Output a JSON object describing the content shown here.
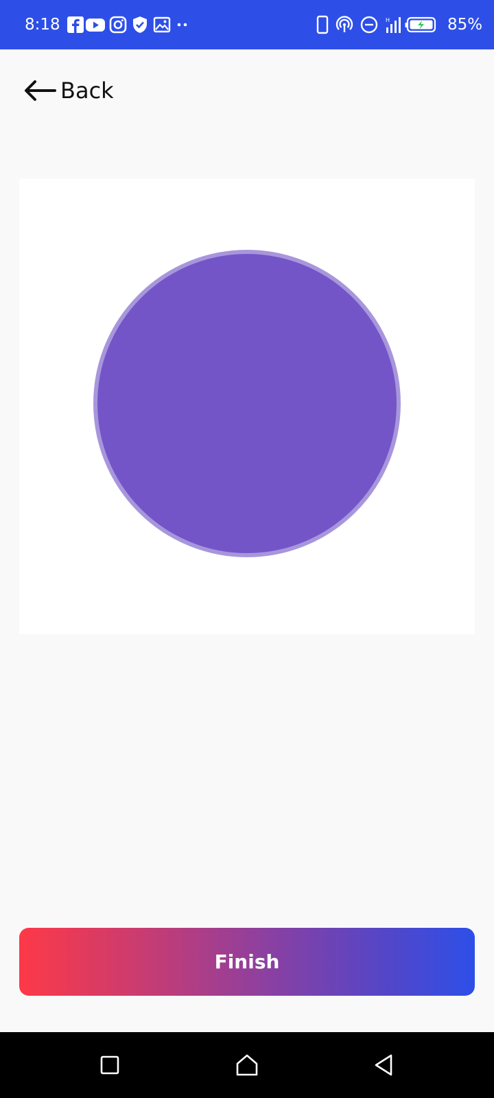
{
  "status_bar": {
    "time": "8:18",
    "battery_percent": "85%",
    "background_color": "#2d4fe8",
    "left_icons": [
      "facebook-icon",
      "youtube-icon",
      "instagram-icon",
      "shield-check-icon",
      "gallery-icon",
      "more-dots-icon"
    ],
    "right_icons": [
      "phone-outline-icon",
      "hotspot-icon",
      "do-not-disturb-icon",
      "signal-icon",
      "battery-charging-icon"
    ]
  },
  "header": {
    "back_label": "Back"
  },
  "canvas": {
    "circle_color": "#7355c8",
    "circle_border_color": "#a896dc"
  },
  "footer": {
    "finish_label": "Finish",
    "gradient_colors": [
      "#fd3947",
      "#2d4fe8"
    ]
  },
  "nav_bar": {
    "buttons": [
      "recents-square-icon",
      "home-icon",
      "back-triangle-icon"
    ]
  }
}
